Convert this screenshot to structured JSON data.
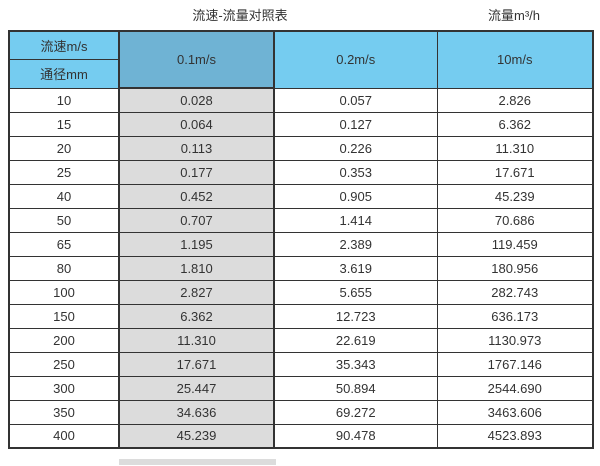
{
  "page": {
    "title": "流速-流量对照表",
    "unit_label": "流量m³/h"
  },
  "table": {
    "corner_top": "流速m/s",
    "corner_bottom": "通径mm",
    "velocity_columns": [
      "0.1m/s",
      "0.2m/s",
      "10m/s"
    ],
    "rows": [
      {
        "dn": "10",
        "values": [
          "0.028",
          "0.057",
          "2.826"
        ]
      },
      {
        "dn": "15",
        "values": [
          "0.064",
          "0.127",
          "6.362"
        ]
      },
      {
        "dn": "20",
        "values": [
          "0.113",
          "0.226",
          "11.310"
        ]
      },
      {
        "dn": "25",
        "values": [
          "0.177",
          "0.353",
          "17.671"
        ]
      },
      {
        "dn": "40",
        "values": [
          "0.452",
          "0.905",
          "45.239"
        ]
      },
      {
        "dn": "50",
        "values": [
          "0.707",
          "1.414",
          "70.686"
        ]
      },
      {
        "dn": "65",
        "values": [
          "1.195",
          "2.389",
          "119.459"
        ]
      },
      {
        "dn": "80",
        "values": [
          "1.810",
          "3.619",
          "180.956"
        ]
      },
      {
        "dn": "100",
        "values": [
          "2.827",
          "5.655",
          "282.743"
        ]
      },
      {
        "dn": "150",
        "values": [
          "6.362",
          "12.723",
          "636.173"
        ]
      },
      {
        "dn": "200",
        "values": [
          "11.310",
          "22.619",
          "1130.973"
        ]
      },
      {
        "dn": "250",
        "values": [
          "17.671",
          "35.343",
          "1767.146"
        ]
      },
      {
        "dn": "300",
        "values": [
          "25.447",
          "50.894",
          "2544.690"
        ]
      },
      {
        "dn": "350",
        "values": [
          "34.636",
          "69.272",
          "3463.606"
        ]
      },
      {
        "dn": "400",
        "values": [
          "45.239",
          "90.478",
          "4523.893"
        ]
      }
    ]
  },
  "colors": {
    "header_blue": "#75CCF0",
    "highlight_blue": "#6FB3D4",
    "highlight_gray": "#DCDCDC",
    "border_color": "#333333",
    "text_color": "#333333"
  },
  "chart_data": {
    "type": "table",
    "title": "流速-流量对照表",
    "unit": "流量m³/h",
    "row_header_label": "通径mm",
    "column_header_label": "流速m/s",
    "columns": [
      "0.1m/s",
      "0.2m/s",
      "10m/s"
    ],
    "diameters_mm": [
      10,
      15,
      20,
      25,
      40,
      50,
      65,
      80,
      100,
      150,
      200,
      250,
      300,
      350,
      400
    ],
    "series": [
      {
        "name": "0.1m/s",
        "values": [
          0.028,
          0.064,
          0.113,
          0.177,
          0.452,
          0.707,
          1.195,
          1.81,
          2.827,
          6.362,
          11.31,
          17.671,
          25.447,
          34.636,
          45.239
        ]
      },
      {
        "name": "0.2m/s",
        "values": [
          0.057,
          0.127,
          0.226,
          0.353,
          0.905,
          1.414,
          2.389,
          3.619,
          5.655,
          12.723,
          22.619,
          35.343,
          50.894,
          69.272,
          90.478
        ]
      },
      {
        "name": "10m/s",
        "values": [
          2.826,
          6.362,
          11.31,
          17.671,
          45.239,
          70.686,
          119.459,
          180.956,
          282.743,
          636.173,
          1130.973,
          1767.146,
          2544.69,
          3463.606,
          4523.893
        ]
      }
    ],
    "layout_hints": {
      "highlighted_column": "0.1m/s",
      "grid": true
    }
  }
}
